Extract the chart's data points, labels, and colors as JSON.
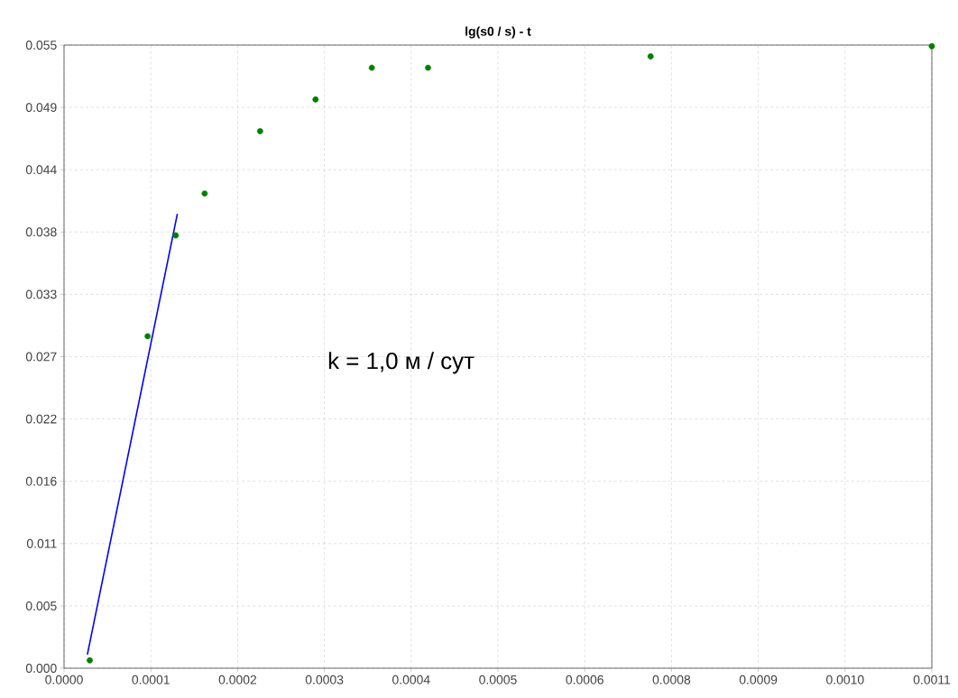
{
  "chart_data": {
    "type": "scatter",
    "title": "lg(s0 / s) - t",
    "series": [
      {
        "color": "#008000",
        "marker": "circle",
        "x": [
          3.2e-05,
          0.000104,
          0.000139,
          0.000175,
          0.000244,
          0.000313,
          0.000383,
          0.000453,
          0.00073,
          0.00108
        ],
        "values": [
          0.0007,
          0.0293,
          0.0382,
          0.0419,
          0.0474,
          0.0502,
          0.053,
          0.053,
          0.054,
          0.0549
        ]
      },
      {
        "type": "line",
        "color": "#0000ff",
        "x": [
          2.9e-05,
          0.000141
        ],
        "values": [
          0.0012,
          0.0401
        ]
      }
    ],
    "annotations": [
      "k = 1,0  м / сут"
    ],
    "xlim": [
      0,
      0.00108
    ],
    "ylim": [
      0,
      0.055
    ],
    "xticks": [
      {
        "value": 0,
        "label": "0.0000"
      },
      {
        "value": 0.000108,
        "label": "0.0001"
      },
      {
        "value": 0.000216,
        "label": "0.0002"
      },
      {
        "value": 0.000324,
        "label": "0.0003"
      },
      {
        "value": 0.000432,
        "label": "0.0004"
      },
      {
        "value": 0.00054,
        "label": "0.0005"
      },
      {
        "value": 0.000648,
        "label": "0.0006"
      },
      {
        "value": 0.000756,
        "label": "0.0008"
      },
      {
        "value": 0.000864,
        "label": "0.0009"
      },
      {
        "value": 0.000972,
        "label": "0.0010"
      },
      {
        "value": 0.00108,
        "label": "0.0011"
      }
    ],
    "yticks": [
      {
        "value": 0,
        "label": "0.000"
      },
      {
        "value": 0.0055,
        "label": "0.005"
      },
      {
        "value": 0.011,
        "label": "0.011"
      },
      {
        "value": 0.0165,
        "label": "0.016"
      },
      {
        "value": 0.022,
        "label": "0.022"
      },
      {
        "value": 0.0275,
        "label": "0.027"
      },
      {
        "value": 0.033,
        "label": "0.033"
      },
      {
        "value": 0.0385,
        "label": "0.038"
      },
      {
        "value": 0.044,
        "label": "0.044"
      },
      {
        "value": 0.0495,
        "label": "0.049"
      },
      {
        "value": 0.055,
        "label": "0.055"
      }
    ],
    "grid": true
  }
}
